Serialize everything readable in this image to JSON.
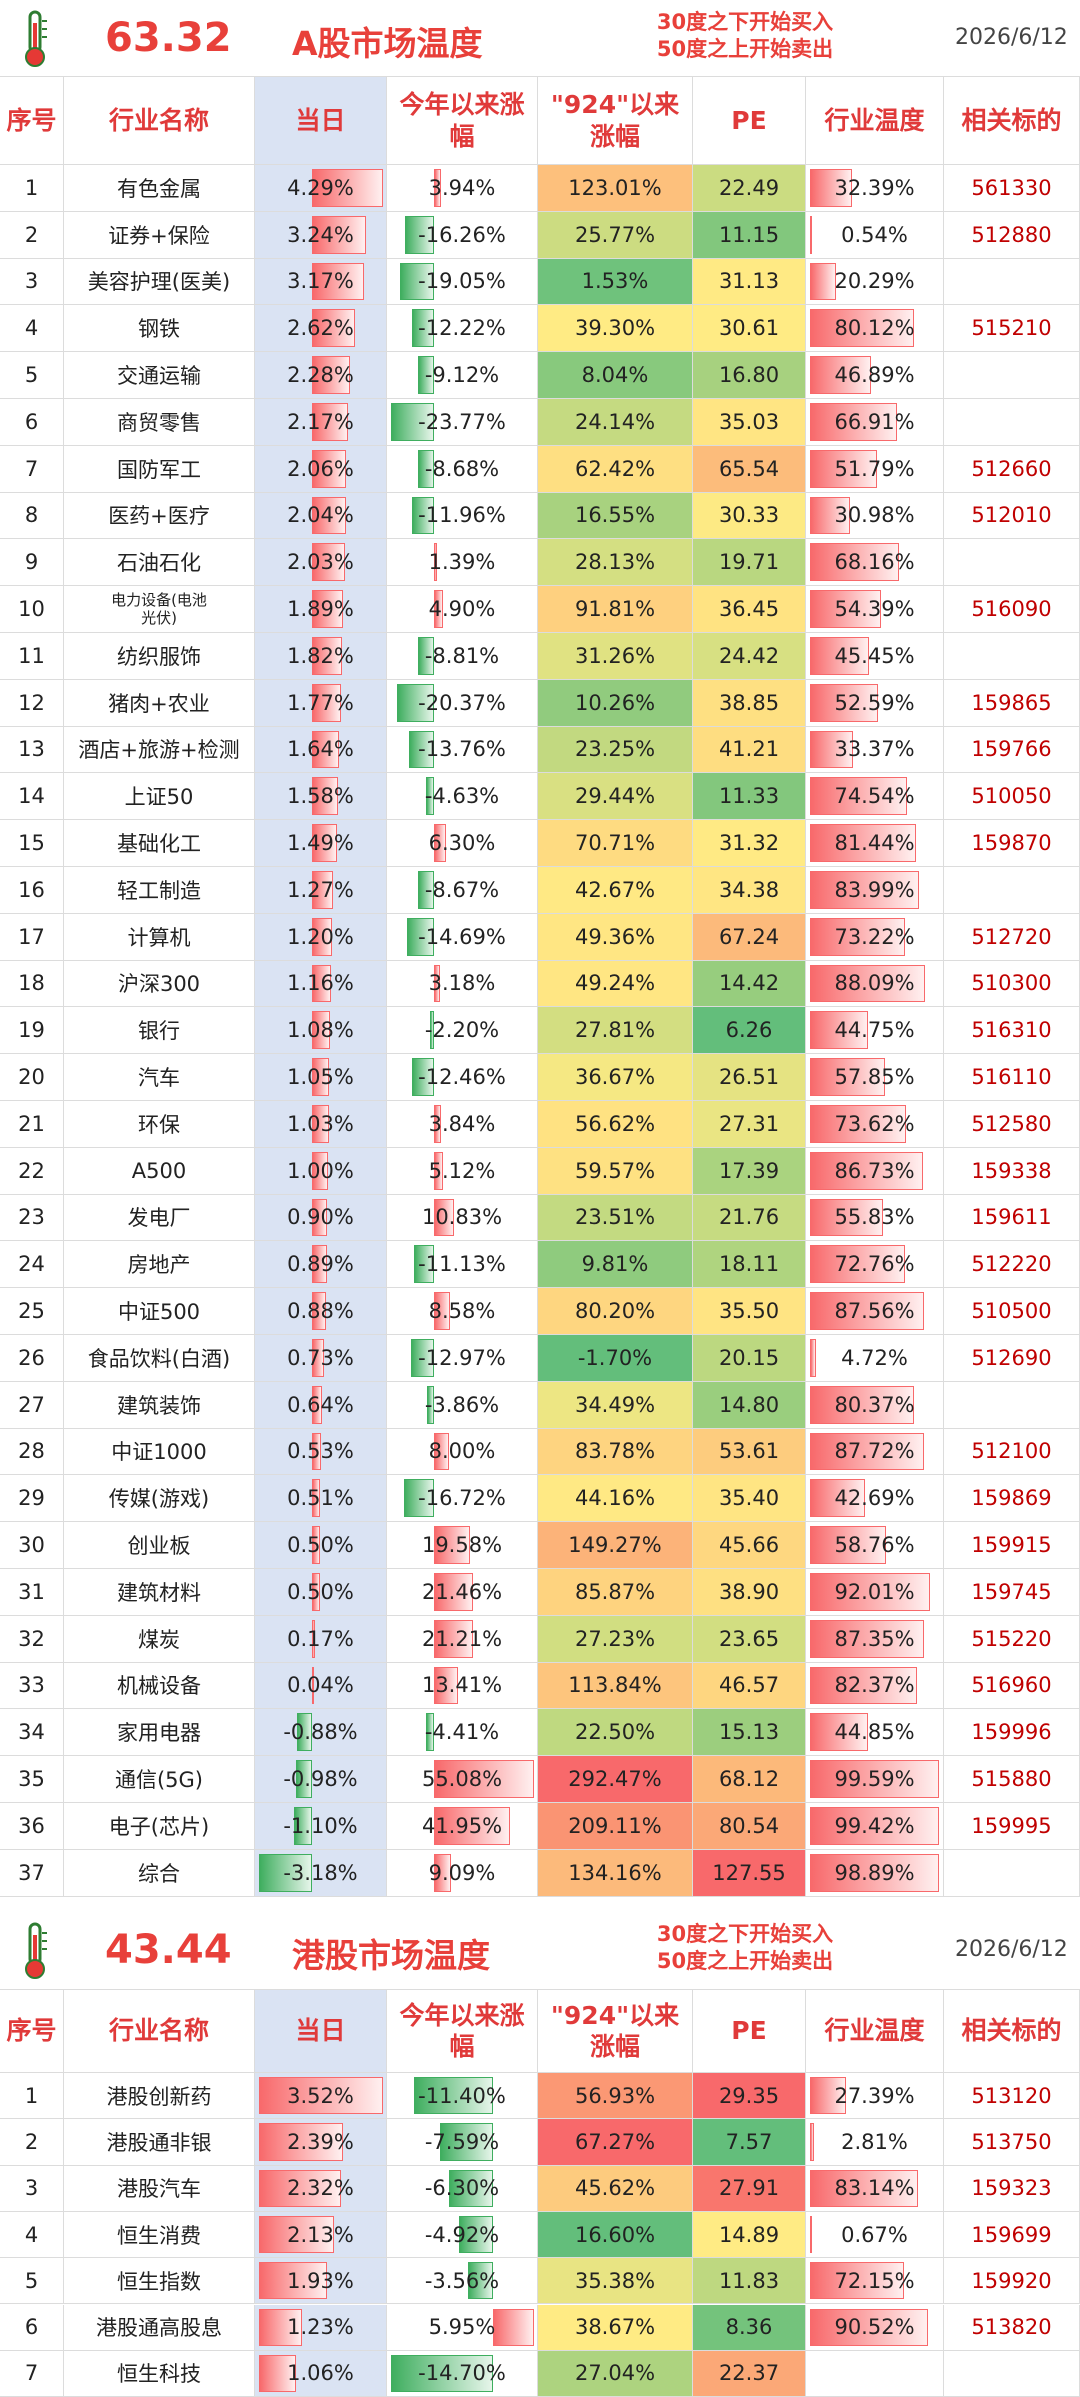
{
  "tables": [
    {
      "score": "63.32",
      "title": "A股市场温度",
      "note": [
        "30度之下开始买入",
        "50度之上开始卖出"
      ],
      "date": "2026/6/12",
      "headers": [
        "序号",
        "行业名称",
        "当日",
        "今年以来涨幅",
        "\"924\"以来涨幅",
        "PE",
        "行业温度",
        "相关标的"
      ],
      "rows": [
        [
          "1",
          "有色金属",
          "4.29%",
          "3.94%",
          "123.01%",
          "22.49",
          "32.39%",
          "561330"
        ],
        [
          "2",
          "证券+保险",
          "3.24%",
          "-16.26%",
          "25.77%",
          "11.15",
          "0.54%",
          "512880"
        ],
        [
          "3",
          "美容护理(医美)",
          "3.17%",
          "-19.05%",
          "1.53%",
          "31.13",
          "20.29%",
          null
        ],
        [
          "4",
          "钢铁",
          "2.62%",
          "-12.22%",
          "39.30%",
          "30.61",
          "80.12%",
          "515210"
        ],
        [
          "5",
          "交通运输",
          "2.28%",
          "-9.12%",
          "8.04%",
          "16.80",
          "46.89%",
          null
        ],
        [
          "6",
          "商贸零售",
          "2.17%",
          "-23.77%",
          "24.14%",
          "35.03",
          "66.91%",
          null
        ],
        [
          "7",
          "国防军工",
          "2.06%",
          "-8.68%",
          "62.42%",
          "65.54",
          "51.79%",
          "512660"
        ],
        [
          "8",
          "医药+医疗",
          "2.04%",
          "-11.96%",
          "16.55%",
          "30.33",
          "30.98%",
          "512010"
        ],
        [
          "9",
          "石油石化",
          "2.03%",
          "1.39%",
          "28.13%",
          "19.71",
          "68.16%",
          null
        ],
        [
          "10",
          "电力设备(电池光伏)",
          "1.89%",
          "4.90%",
          "91.81%",
          "36.45",
          "54.39%",
          "516090"
        ],
        [
          "11",
          "纺织服饰",
          "1.82%",
          "-8.81%",
          "31.26%",
          "24.42",
          "45.45%",
          null
        ],
        [
          "12",
          "猪肉+农业",
          "1.77%",
          "-20.37%",
          "10.26%",
          "38.85",
          "52.59%",
          "159865"
        ],
        [
          "13",
          "酒店+旅游+检测",
          "1.64%",
          "-13.76%",
          "23.25%",
          "41.21",
          "33.37%",
          "159766"
        ],
        [
          "14",
          "上证50",
          "1.58%",
          "-4.63%",
          "29.44%",
          "11.33",
          "74.54%",
          "510050"
        ],
        [
          "15",
          "基础化工",
          "1.49%",
          "6.30%",
          "70.71%",
          "31.32",
          "81.44%",
          "159870"
        ],
        [
          "16",
          "轻工制造",
          "1.27%",
          "-8.67%",
          "42.67%",
          "34.38",
          "83.99%",
          null
        ],
        [
          "17",
          "计算机",
          "1.20%",
          "-14.69%",
          "49.36%",
          "67.24",
          "73.22%",
          "512720"
        ],
        [
          "18",
          "沪深300",
          "1.16%",
          "3.18%",
          "49.24%",
          "14.42",
          "88.09%",
          "510300"
        ],
        [
          "19",
          "银行",
          "1.08%",
          "-2.20%",
          "27.81%",
          "6.26",
          "44.75%",
          "516310"
        ],
        [
          "20",
          "汽车",
          "1.05%",
          "-12.46%",
          "36.67%",
          "26.51",
          "57.85%",
          "516110"
        ],
        [
          "21",
          "环保",
          "1.03%",
          "3.84%",
          "56.62%",
          "27.31",
          "73.62%",
          "512580"
        ],
        [
          "22",
          "A500",
          "1.00%",
          "5.12%",
          "59.57%",
          "17.39",
          "86.73%",
          "159338"
        ],
        [
          "23",
          "发电厂",
          "0.90%",
          "10.83%",
          "23.51%",
          "21.76",
          "55.83%",
          "159611"
        ],
        [
          "24",
          "房地产",
          "0.89%",
          "-11.13%",
          "9.81%",
          "18.11",
          "72.76%",
          "512220"
        ],
        [
          "25",
          "中证500",
          "0.88%",
          "8.58%",
          "80.20%",
          "35.50",
          "87.56%",
          "510500"
        ],
        [
          "26",
          "食品饮料(白酒)",
          "0.73%",
          "-12.97%",
          "-1.70%",
          "20.15",
          "4.72%",
          "512690"
        ],
        [
          "27",
          "建筑装饰",
          "0.64%",
          "-3.86%",
          "34.49%",
          "14.80",
          "80.37%",
          null
        ],
        [
          "28",
          "中证1000",
          "0.53%",
          "8.00%",
          "83.78%",
          "53.61",
          "87.72%",
          "512100"
        ],
        [
          "29",
          "传媒(游戏)",
          "0.51%",
          "-16.72%",
          "44.16%",
          "35.40",
          "42.69%",
          "159869"
        ],
        [
          "30",
          "创业板",
          "0.50%",
          "19.58%",
          "149.27%",
          "45.66",
          "58.76%",
          "159915"
        ],
        [
          "31",
          "建筑材料",
          "0.50%",
          "21.46%",
          "85.87%",
          "38.90",
          "92.01%",
          "159745"
        ],
        [
          "32",
          "煤炭",
          "0.17%",
          "21.21%",
          "27.23%",
          "23.65",
          "87.35%",
          "515220"
        ],
        [
          "33",
          "机械设备",
          "0.04%",
          "13.41%",
          "113.84%",
          "46.57",
          "82.37%",
          "516960"
        ],
        [
          "34",
          "家用电器",
          "-0.88%",
          "-4.41%",
          "22.50%",
          "15.13",
          "44.85%",
          "159996"
        ],
        [
          "35",
          "通信(5G)",
          "-0.98%",
          "55.08%",
          "292.47%",
          "68.12",
          "99.59%",
          "515880"
        ],
        [
          "36",
          "电子(芯片)",
          "-1.10%",
          "41.95%",
          "209.11%",
          "80.54",
          "99.42%",
          "159995"
        ],
        [
          "37",
          "综合",
          "-3.18%",
          "9.09%",
          "134.16%",
          "127.55",
          "98.89%",
          null
        ]
      ]
    },
    {
      "score": "43.44",
      "title": "港股市场温度",
      "note": [
        "30度之下开始买入",
        "50度之上开始卖出"
      ],
      "date": "2026/6/12",
      "headers": [
        "序号",
        "行业名称",
        "当日",
        "今年以来涨幅",
        "\"924\"以来涨幅",
        "PE",
        "行业温度",
        "相关标的"
      ],
      "rows": [
        [
          "1",
          "港股创新药",
          "3.52%",
          "-11.40%",
          "56.93%",
          "29.35",
          "27.39%",
          "513120"
        ],
        [
          "2",
          "港股通非银",
          "2.39%",
          "-7.59%",
          "67.27%",
          "7.57",
          "2.81%",
          "513750"
        ],
        [
          "3",
          "港股汽车",
          "2.32%",
          "-6.30%",
          "45.62%",
          "27.91",
          "83.14%",
          "159323"
        ],
        [
          "4",
          "恒生消费",
          "2.13%",
          "-4.92%",
          "16.60%",
          "14.89",
          "0.67%",
          "159699"
        ],
        [
          "5",
          "恒生指数",
          "1.93%",
          "-3.56%",
          "35.38%",
          "11.83",
          "72.15%",
          "159920"
        ],
        [
          "6",
          "港股通高股息",
          "1.23%",
          "5.95%",
          "38.67%",
          "8.36",
          "90.52%",
          "513820"
        ],
        [
          "7",
          "恒生科技",
          "1.06%",
          "-14.70%",
          "27.04%",
          "22.37",
          null,
          null
        ]
      ]
    }
  ]
}
